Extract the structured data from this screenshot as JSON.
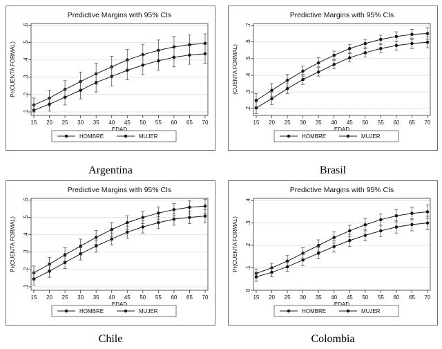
{
  "chart_data": [
    {
      "type": "line",
      "caption": "Argentina",
      "title": "Predictive Margins with 95% CIs",
      "xlabel": "EDAD",
      "ylabel": "Pr(CUENTA FORMAL)",
      "x": [
        15,
        20,
        25,
        30,
        35,
        40,
        45,
        50,
        55,
        60,
        65,
        70
      ],
      "xticks": [
        "15",
        "20",
        "25",
        "30",
        "35",
        "40",
        "45",
        "50",
        "55",
        "60",
        "65",
        "70"
      ],
      "yticks": [
        ".1",
        ".2",
        ".3",
        ".4",
        ".5",
        ".6"
      ],
      "ylim": [
        0.08,
        0.61
      ],
      "legend_position": "bottom",
      "series": [
        {
          "name": "HOMBRE",
          "values": [
            0.14,
            0.18,
            0.23,
            0.275,
            0.32,
            0.36,
            0.4,
            0.43,
            0.455,
            0.475,
            0.488,
            0.495
          ],
          "lower": [
            0.1,
            0.135,
            0.18,
            0.22,
            0.26,
            0.3,
            0.34,
            0.37,
            0.39,
            0.415,
            0.43,
            0.44
          ],
          "upper": [
            0.18,
            0.225,
            0.28,
            0.33,
            0.38,
            0.42,
            0.46,
            0.49,
            0.515,
            0.535,
            0.545,
            0.55
          ]
        },
        {
          "name": "MUJER",
          "values": [
            0.11,
            0.145,
            0.185,
            0.225,
            0.27,
            0.305,
            0.34,
            0.37,
            0.395,
            0.415,
            0.428,
            0.435
          ],
          "lower": [
            0.08,
            0.105,
            0.14,
            0.175,
            0.215,
            0.25,
            0.285,
            0.315,
            0.34,
            0.36,
            0.375,
            0.38
          ],
          "upper": [
            0.14,
            0.185,
            0.23,
            0.275,
            0.325,
            0.36,
            0.395,
            0.425,
            0.45,
            0.47,
            0.48,
            0.49
          ]
        }
      ]
    },
    {
      "type": "line",
      "caption": "Brasil",
      "title": "Predictive Margins with 95% CIs",
      "xlabel": "EDAD",
      "ylabel": "(CUENTA FORMAL)",
      "x": [
        15,
        20,
        25,
        30,
        35,
        40,
        45,
        50,
        55,
        60,
        65,
        70
      ],
      "xticks": [
        "15",
        "20",
        "25",
        "30",
        "35",
        "40",
        "45",
        "50",
        "55",
        "60",
        "65",
        "70"
      ],
      "yticks": [
        ".2",
        ".3",
        ".4",
        ".5",
        ".6",
        ".7"
      ],
      "ylim": [
        0.16,
        0.71
      ],
      "legend_position": "bottom",
      "series": [
        {
          "name": "HOMBRE",
          "values": [
            0.25,
            0.31,
            0.37,
            0.425,
            0.475,
            0.52,
            0.56,
            0.59,
            0.615,
            0.632,
            0.645,
            0.65
          ],
          "lower": [
            0.21,
            0.275,
            0.335,
            0.395,
            0.45,
            0.495,
            0.535,
            0.565,
            0.59,
            0.605,
            0.615,
            0.615
          ],
          "upper": [
            0.29,
            0.35,
            0.405,
            0.455,
            0.505,
            0.545,
            0.585,
            0.615,
            0.64,
            0.66,
            0.675,
            0.685
          ]
        },
        {
          "name": "MUJER",
          "values": [
            0.205,
            0.26,
            0.32,
            0.375,
            0.42,
            0.465,
            0.505,
            0.535,
            0.56,
            0.578,
            0.59,
            0.598
          ],
          "lower": [
            0.17,
            0.225,
            0.29,
            0.345,
            0.395,
            0.44,
            0.48,
            0.51,
            0.535,
            0.55,
            0.56,
            0.565
          ],
          "upper": [
            0.24,
            0.295,
            0.35,
            0.405,
            0.445,
            0.49,
            0.53,
            0.56,
            0.585,
            0.605,
            0.62,
            0.63
          ]
        }
      ]
    },
    {
      "type": "line",
      "caption": "Chile",
      "title": "Predictive Margins with 95% CIs",
      "xlabel": "EDAD",
      "ylabel": "Pr(CUENTA FORMAL)",
      "x": [
        15,
        20,
        25,
        30,
        35,
        40,
        45,
        50,
        55,
        60,
        65,
        70
      ],
      "xticks": [
        "15",
        "20",
        "25",
        "30",
        "35",
        "40",
        "45",
        "50",
        "55",
        "60",
        "65",
        "70"
      ],
      "yticks": [
        ".1",
        ".2",
        ".3",
        ".4",
        ".5",
        ".6"
      ],
      "ylim": [
        0.08,
        0.61
      ],
      "legend_position": "bottom",
      "series": [
        {
          "name": "HOMBRE",
          "values": [
            0.18,
            0.23,
            0.285,
            0.335,
            0.385,
            0.43,
            0.47,
            0.5,
            0.525,
            0.545,
            0.558,
            0.565
          ],
          "lower": [
            0.14,
            0.19,
            0.245,
            0.295,
            0.345,
            0.39,
            0.43,
            0.465,
            0.49,
            0.51,
            0.52,
            0.525
          ],
          "upper": [
            0.22,
            0.27,
            0.325,
            0.375,
            0.425,
            0.47,
            0.51,
            0.535,
            0.56,
            0.58,
            0.595,
            0.605
          ]
        },
        {
          "name": "MUJER",
          "values": [
            0.145,
            0.19,
            0.24,
            0.29,
            0.335,
            0.375,
            0.415,
            0.445,
            0.47,
            0.49,
            0.5,
            0.508
          ],
          "lower": [
            0.11,
            0.155,
            0.205,
            0.255,
            0.3,
            0.34,
            0.38,
            0.41,
            0.435,
            0.455,
            0.465,
            0.47
          ],
          "upper": [
            0.18,
            0.225,
            0.275,
            0.325,
            0.37,
            0.41,
            0.45,
            0.48,
            0.505,
            0.525,
            0.535,
            0.545
          ]
        }
      ]
    },
    {
      "type": "line",
      "caption": "Colombia",
      "title": "Predictive Margins with 95% CIs",
      "xlabel": "EDAD",
      "ylabel": "Pr(CUENTA FORMAL)",
      "x": [
        15,
        20,
        25,
        30,
        35,
        40,
        45,
        50,
        55,
        60,
        65,
        70
      ],
      "xticks": [
        "15",
        "20",
        "25",
        "30",
        "35",
        "40",
        "45",
        "50",
        "55",
        "60",
        "65",
        "70"
      ],
      "yticks": [
        "0",
        ".1",
        ".2",
        ".3",
        ".4"
      ],
      "ylim": [
        0,
        0.41
      ],
      "legend_position": "bottom",
      "series": [
        {
          "name": "HOMBRE",
          "values": [
            0.075,
            0.1,
            0.13,
            0.165,
            0.2,
            0.235,
            0.265,
            0.292,
            0.315,
            0.332,
            0.343,
            0.35
          ],
          "lower": [
            0.055,
            0.08,
            0.105,
            0.14,
            0.175,
            0.21,
            0.24,
            0.265,
            0.29,
            0.305,
            0.315,
            0.32
          ],
          "upper": [
            0.095,
            0.12,
            0.155,
            0.19,
            0.225,
            0.26,
            0.29,
            0.32,
            0.34,
            0.36,
            0.37,
            0.38
          ]
        },
        {
          "name": "MUJER",
          "values": [
            0.06,
            0.08,
            0.105,
            0.135,
            0.165,
            0.195,
            0.222,
            0.245,
            0.265,
            0.282,
            0.293,
            0.3
          ],
          "lower": [
            0.04,
            0.06,
            0.085,
            0.11,
            0.14,
            0.17,
            0.195,
            0.22,
            0.24,
            0.255,
            0.265,
            0.27
          ],
          "upper": [
            0.08,
            0.1,
            0.125,
            0.16,
            0.19,
            0.22,
            0.25,
            0.27,
            0.29,
            0.31,
            0.32,
            0.33
          ]
        }
      ]
    }
  ]
}
